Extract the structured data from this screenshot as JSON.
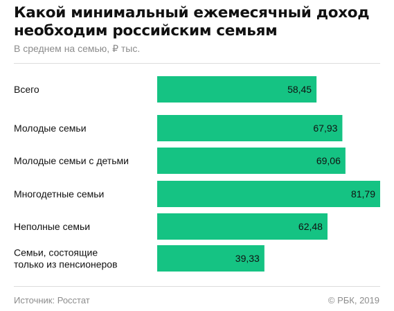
{
  "header": {
    "title_line1": "Какой минимальный ежемесячный доход",
    "title_line2": "необходим российским семьям",
    "subtitle": "В среднем на семью, ₽ тыс."
  },
  "chart_data": {
    "type": "bar",
    "orientation": "horizontal",
    "title": "Какой минимальный ежемесячный доход необходим российским семьям",
    "subtitle": "В среднем на семью, ₽ тыс.",
    "categories": [
      [
        "Всего"
      ],
      [
        "Молодые семьи"
      ],
      [
        "Молодые семьи с детьми"
      ],
      [
        "Многодетные семьи"
      ],
      [
        "Неполные семьи"
      ],
      [
        "Семьи, состоящие",
        "только из пенсионеров"
      ]
    ],
    "values": [
      58.45,
      67.93,
      69.06,
      81.79,
      62.48,
      39.33
    ],
    "value_labels": [
      "58,45",
      "67,93",
      "69,06",
      "81,79",
      "62,48",
      "39,33"
    ],
    "xlim": [
      0,
      81.79
    ],
    "bar_color": "#15c383",
    "grid": false
  },
  "footer": {
    "source": "Источник: Росстат",
    "copyright": "© РБК, 2019"
  }
}
